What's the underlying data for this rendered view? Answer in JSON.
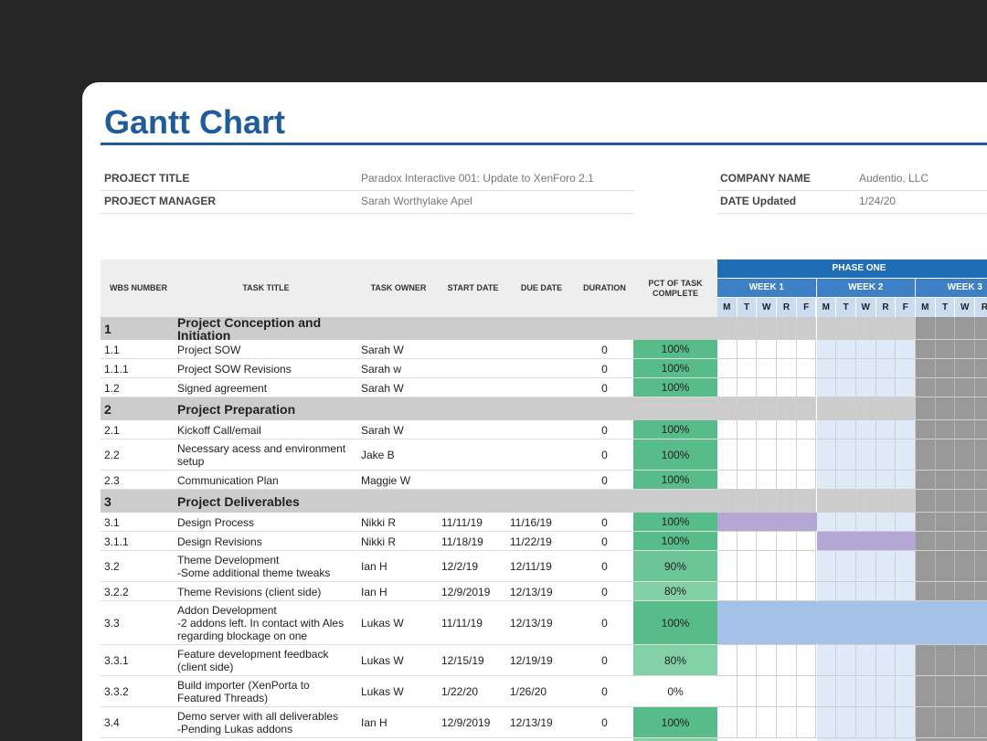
{
  "header": {
    "title": "Gantt Chart"
  },
  "project": {
    "fields": [
      {
        "label": "PROJECT TITLE",
        "value": "Paradox Interactive 001: Update to XenForo 2.1"
      },
      {
        "label": "PROJECT MANAGER",
        "value": "Sarah Worthylake Apel"
      }
    ],
    "company": [
      {
        "label": "COMPANY NAME",
        "value": "Audentio, LLC"
      },
      {
        "label": "DATE Updated",
        "value": "1/24/20"
      }
    ]
  },
  "table": {
    "columns": [
      "WBS NUMBER",
      "TASK TITLE",
      "TASK OWNER",
      "START DATE",
      "DUE DATE",
      "DURATION",
      "PCT OF TASK COMPLETE"
    ],
    "phase": "PHASE ONE",
    "weeks": [
      "WEEK 1",
      "WEEK 2",
      "WEEK 3"
    ],
    "days": [
      "M",
      "T",
      "W",
      "R",
      "F"
    ],
    "rows": [
      {
        "wbs": "1",
        "title": "Project Conception and Initiation"
      },
      {
        "wbs": "1.1",
        "title": "Project SOW",
        "owner": "Sarah W",
        "duration": 0,
        "pct": "100%"
      },
      {
        "wbs": "1.1.1",
        "title": "Project SOW Revisions",
        "owner": "Sarah w",
        "duration": 0,
        "pct": "100%"
      },
      {
        "wbs": "1.2",
        "title": "Signed agreement",
        "owner": "Sarah W",
        "duration": 0,
        "pct": "100%"
      },
      {
        "wbs": "2",
        "title": "Project Preparation"
      },
      {
        "wbs": "2.1",
        "title": "Kickoff Call/email",
        "owner": "Sarah W",
        "duration": 0,
        "pct": "100%"
      },
      {
        "wbs": "2.2",
        "title": "Necessary acess and environment\nsetup",
        "owner": "Jake B",
        "duration": 0,
        "pct": "100%"
      },
      {
        "wbs": "2.3",
        "title": "Communication Plan",
        "owner": "Maggie W",
        "duration": 0,
        "pct": "100%"
      },
      {
        "wbs": "3",
        "title": "Project Deliverables"
      },
      {
        "wbs": "3.1",
        "title": "Design Process",
        "owner": "Nikki R",
        "start": "11/11/19",
        "due": "11/16/19",
        "duration": 0,
        "pct": "100%"
      },
      {
        "wbs": "3.1.1",
        "title": "Design Revisions",
        "owner": "Nikki R",
        "start": "11/18/19",
        "due": "11/22/19",
        "duration": 0,
        "pct": "100%"
      },
      {
        "wbs": "3.2",
        "title": "Theme Development\n-Some additional theme tweaks",
        "owner": "Ian H",
        "start": "12/2/19",
        "due": "12/11/19",
        "duration": 0,
        "pct": "90%"
      },
      {
        "wbs": "3.2.2",
        "title": "Theme Revisions (client side)",
        "owner": "Ian H",
        "start": "12/9/2019",
        "due": "12/13/19",
        "duration": 0,
        "pct": "80%"
      },
      {
        "wbs": "3.3",
        "title": "Addon Development\n-2 addons left. In contact with Ales\nregarding blockage on one",
        "owner": "Lukas W",
        "start": "11/11/19",
        "due": "12/13/19",
        "duration": 0,
        "pct": "100%"
      },
      {
        "wbs": "3.3.1",
        "title": "Feature development feedback\n(client side)",
        "owner": "Lukas W",
        "start": "12/15/19",
        "due": "12/19/19",
        "duration": 0,
        "pct": "80%"
      },
      {
        "wbs": "3.3.2",
        "title": "Build importer (XenPorta to\nFeatured Threads)",
        "owner": "Lukas W",
        "start": "1/22/20",
        "due": "1/26/20",
        "duration": 0,
        "pct": "0%"
      },
      {
        "wbs": "3.4",
        "title": "Demo server with all deliverables\n-Pending Lukas addons",
        "owner": "Ian H",
        "start": "12/9/2019",
        "due": "12/13/19",
        "duration": 0,
        "pct": "100%"
      }
    ]
  }
}
